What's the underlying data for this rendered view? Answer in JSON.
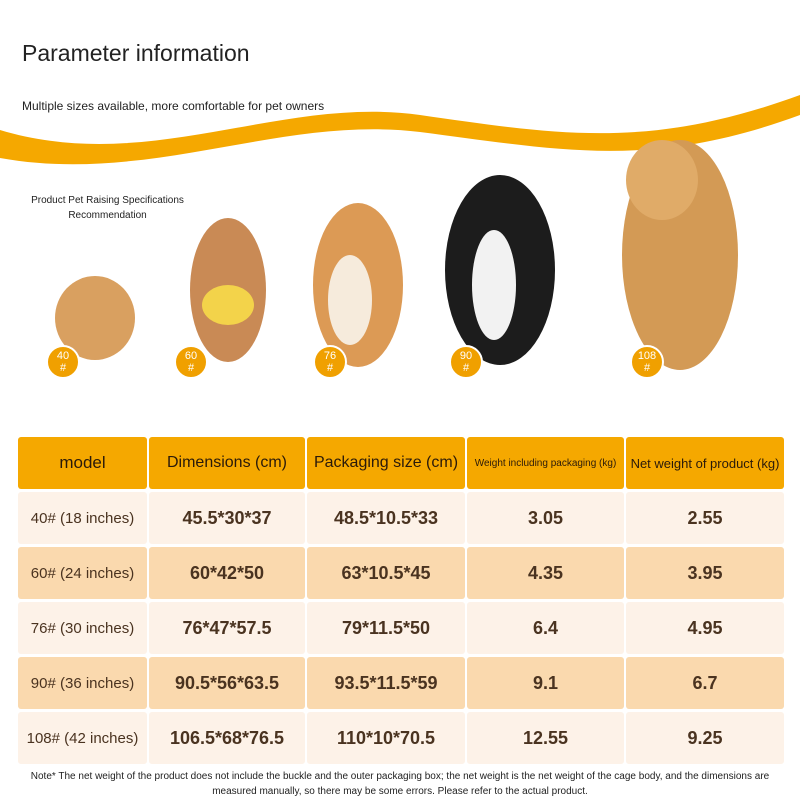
{
  "header": {
    "title": "Parameter information",
    "subtitle": "Multiple sizes available, more comfortable for pet owners"
  },
  "recommendation": "Product Pet Raising Specifications Recommendation",
  "badges": [
    {
      "number": "40",
      "mark": "#"
    },
    {
      "number": "60",
      "mark": "#"
    },
    {
      "number": "76",
      "mark": "#"
    },
    {
      "number": "90",
      "mark": "#"
    },
    {
      "number": "108",
      "mark": "#"
    }
  ],
  "table": {
    "header": [
      "model",
      "Dimensions (cm)",
      "Packaging size (cm)",
      "Weight including packaging (kg)",
      "Net weight of product (kg)"
    ],
    "rows": [
      [
        "40# (18 inches)",
        "45.5*30*37",
        "48.5*10.5*33",
        "3.05",
        "2.55"
      ],
      [
        "60# (24 inches)",
        "60*42*50",
        "63*10.5*45",
        "4.35",
        "3.95"
      ],
      [
        "76# (30 inches)",
        "76*47*57.5",
        "79*11.5*50",
        "6.4",
        "4.95"
      ],
      [
        "90# (36 inches)",
        "90.5*56*63.5",
        "93.5*11.5*59",
        "9.1",
        "6.7"
      ],
      [
        "108# (42 inches)",
        "106.5*68*76.5",
        "110*10*70.5",
        "12.55",
        "9.25"
      ]
    ]
  },
  "note": "Note* The net weight of the product does not include the buckle and the outer packaging box; the net weight is the net weight of the cage body, and the dimensions are measured manually, so there may be some errors. Please refer to the actual product."
}
